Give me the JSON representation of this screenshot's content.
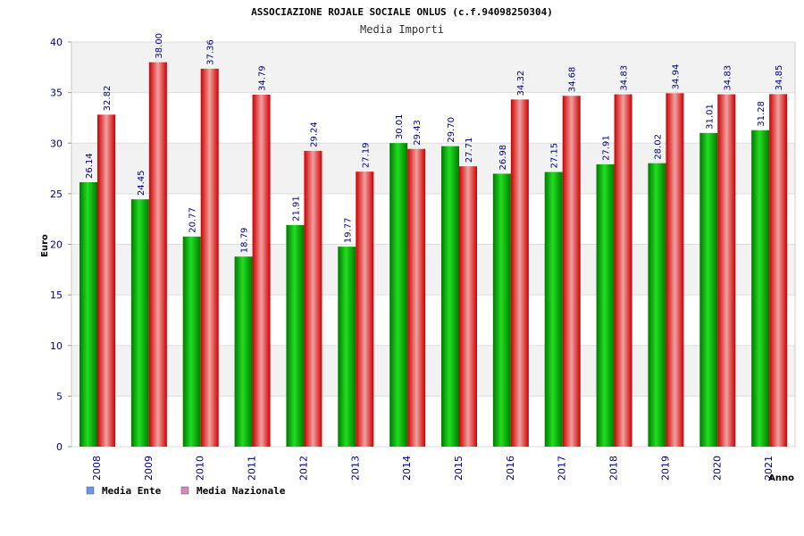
{
  "chart_data": {
    "type": "bar",
    "title": "ASSOCIAZIONE ROJALE SOCIALE ONLUS (c.f.94098250304)",
    "subtitle": "Media Importi",
    "xlabel": "Anno",
    "ylabel": "Euro",
    "ylim": [
      0,
      40
    ],
    "yticks": [
      0,
      5,
      10,
      15,
      20,
      25,
      30,
      35,
      40
    ],
    "grid": true,
    "legend_position": "bottom-left",
    "categories": [
      "2008",
      "2009",
      "2010",
      "2011",
      "2012",
      "2013",
      "2014",
      "2015",
      "2016",
      "2017",
      "2018",
      "2019",
      "2020",
      "2021"
    ],
    "series": [
      {
        "name": "Media Ente",
        "color": "#00b000",
        "legend_color": "#6699ee",
        "values": [
          26.14,
          24.45,
          20.77,
          18.79,
          21.91,
          19.77,
          30.01,
          29.7,
          26.98,
          27.15,
          27.91,
          28.02,
          31.01,
          31.28
        ],
        "labels": [
          "26.14",
          "24.45",
          "20.77",
          "18.79",
          "21.91",
          "19.77",
          "30.01",
          "29.70",
          "26.98",
          "27.15",
          "27.91",
          "28.02",
          "31.01",
          "31.28"
        ]
      },
      {
        "name": "Media Nazionale",
        "color": "#ee1111",
        "legend_color": "#dd88bb",
        "values": [
          32.82,
          38.0,
          37.36,
          34.79,
          29.24,
          27.19,
          29.43,
          27.71,
          34.32,
          34.68,
          34.83,
          34.94,
          34.83,
          34.85
        ],
        "labels": [
          "32.82",
          "38.00",
          "37.36",
          "34.79",
          "29.24",
          "27.19",
          "29.43",
          "27.71",
          "34.32",
          "34.68",
          "34.83",
          "34.94",
          "34.83",
          "34.85"
        ]
      }
    ]
  }
}
